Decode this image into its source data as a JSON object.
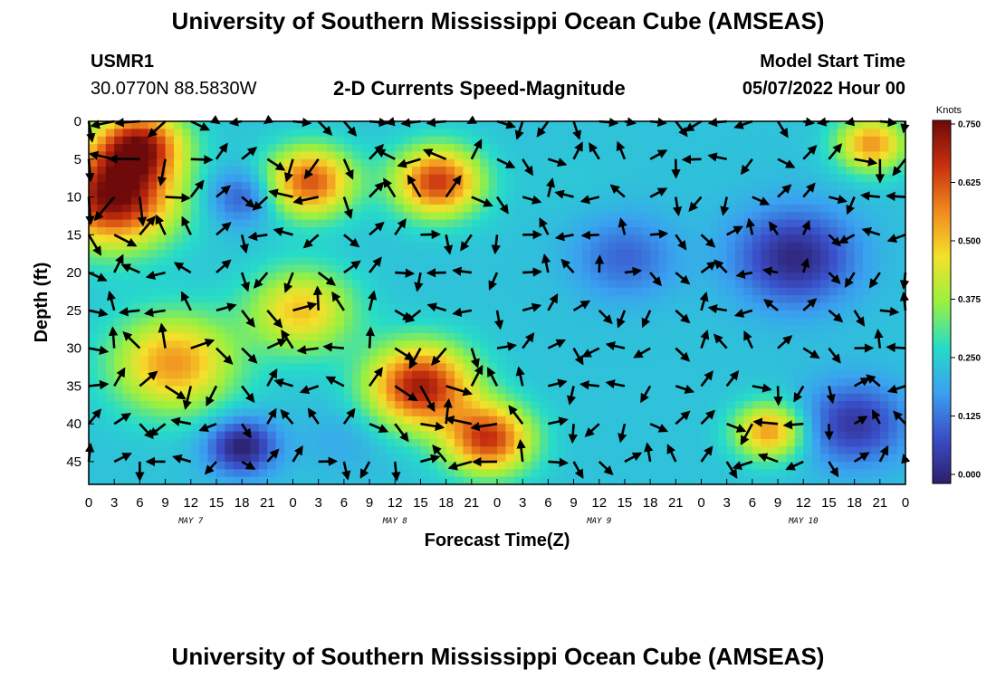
{
  "title": "University of Southern Mississippi Ocean Cube (AMSEAS)",
  "station": {
    "id": "USMR1",
    "coords": "30.0770N  88.5830W"
  },
  "model": {
    "start_label": "Model Start Time",
    "start_value": "05/07/2022 Hour 00"
  },
  "footer_title": "University of Southern Mississippi Ocean Cube (AMSEAS)",
  "chart_data": {
    "type": "heatmap",
    "title": "2-D Currents Speed-Magnitude",
    "xlabel": "Forecast Time(Z)",
    "ylabel": "Depth (ft)",
    "x_ticks": [
      "0",
      "3",
      "6",
      "9",
      "12",
      "15",
      "18",
      "21",
      "0",
      "3",
      "6",
      "9",
      "12",
      "15",
      "18",
      "21",
      "0",
      "3",
      "6",
      "9",
      "12",
      "15",
      "18",
      "21",
      "0",
      "3",
      "6",
      "9",
      "12",
      "15",
      "18",
      "21",
      "0"
    ],
    "x_range_hours": [
      0,
      96
    ],
    "day_labels": [
      {
        "hour": 12,
        "label": "MAY 7"
      },
      {
        "hour": 36,
        "label": "MAY 8"
      },
      {
        "hour": 60,
        "label": "MAY 9"
      },
      {
        "hour": 84,
        "label": "MAY 10"
      }
    ],
    "y_ticks": [
      0,
      5,
      10,
      15,
      20,
      25,
      30,
      35,
      40,
      45
    ],
    "y_range_ft": [
      0,
      48
    ],
    "y_inverted": true,
    "colorbar": {
      "units": "Knots",
      "ticks": [
        "0.750",
        "0.625",
        "0.500",
        "0.375",
        "0.250",
        "0.125",
        "0.000"
      ],
      "range": [
        0,
        0.75
      ],
      "colors": [
        "#2d1e6b",
        "#3a4fc9",
        "#3aa0f0",
        "#26dcc8",
        "#9af040",
        "#f5e02a",
        "#f08a1e",
        "#c8300e",
        "#6e0a0a"
      ]
    },
    "speed_hotspots_knots": [
      {
        "t": 3,
        "d": 10,
        "v": 0.75,
        "s": 7
      },
      {
        "t": 6,
        "d": 3,
        "v": 0.65,
        "s": 5
      },
      {
        "t": 10,
        "d": 32,
        "v": 0.55,
        "s": 7
      },
      {
        "t": 26,
        "d": 8,
        "v": 0.62,
        "s": 5
      },
      {
        "t": 25,
        "d": 25,
        "v": 0.5,
        "s": 6
      },
      {
        "t": 41,
        "d": 8,
        "v": 0.65,
        "s": 5
      },
      {
        "t": 39,
        "d": 35,
        "v": 0.7,
        "s": 6
      },
      {
        "t": 47,
        "d": 42,
        "v": 0.65,
        "s": 5
      },
      {
        "t": 80,
        "d": 41,
        "v": 0.55,
        "s": 4
      },
      {
        "t": 92,
        "d": 3,
        "v": 0.55,
        "s": 4
      },
      {
        "t": 18,
        "d": 43,
        "v": 0.0,
        "s": 4
      },
      {
        "t": 18,
        "d": 10,
        "v": 0.1,
        "s": 4
      },
      {
        "t": 63,
        "d": 18,
        "v": 0.12,
        "s": 6
      },
      {
        "t": 83,
        "d": 18,
        "v": 0.02,
        "s": 7
      },
      {
        "t": 90,
        "d": 40,
        "v": 0.05,
        "s": 6
      },
      {
        "t": 57,
        "d": 8,
        "v": 0.25,
        "s": 5
      },
      {
        "t": 30,
        "d": 42,
        "v": 0.2,
        "s": 5
      }
    ],
    "background_speed_knots": 0.24,
    "vector_grid": {
      "t_step_hours": 3,
      "d_step_ft": 5
    }
  }
}
